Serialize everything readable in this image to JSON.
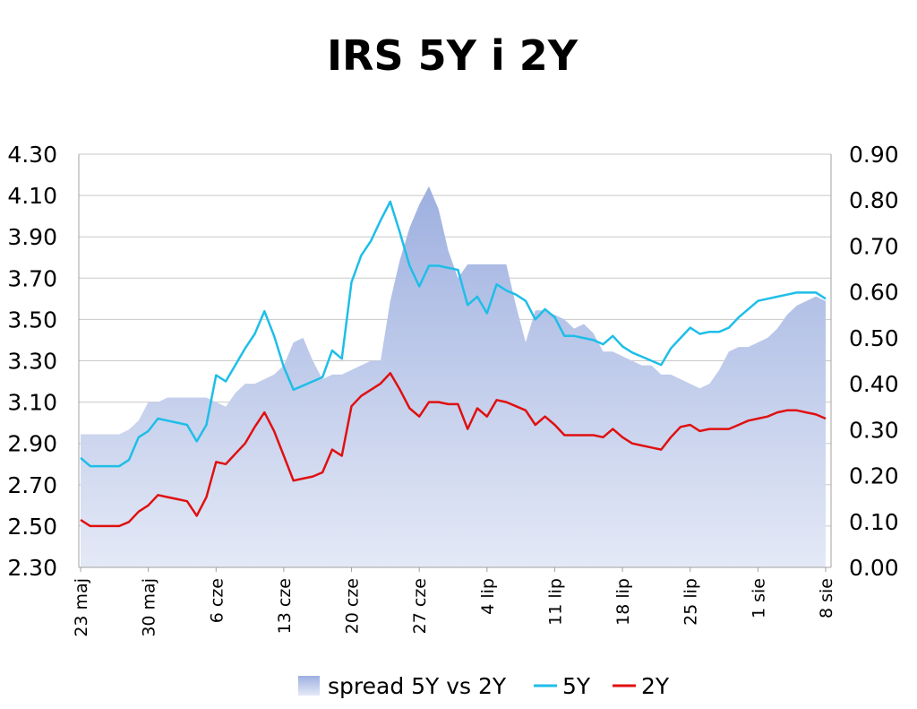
{
  "chart_data": {
    "type": "line",
    "title": "IRS 5Y i 2Y",
    "x_tick_labels": [
      "23 maj",
      "30 maj",
      "6 cze",
      "13 cze",
      "20 cze",
      "27 cze",
      "4 lip",
      "11 lip",
      "18 lip",
      "25 lip",
      "1 sie",
      "8 sie"
    ],
    "y_left": {
      "ylim": [
        2.3,
        4.3
      ],
      "ticks": [
        "2.30",
        "2.50",
        "2.70",
        "2.90",
        "3.10",
        "3.30",
        "3.50",
        "3.70",
        "3.90",
        "4.10",
        "4.30"
      ]
    },
    "y_right": {
      "ylim": [
        0.0,
        0.9
      ],
      "ticks": [
        "0.00",
        "0.10",
        "0.20",
        "0.30",
        "0.40",
        "0.50",
        "0.60",
        "0.70",
        "0.80",
        "0.90"
      ]
    },
    "grid": true,
    "legend_position": "bottom",
    "x_day_range": [
      0,
      77
    ],
    "series": [
      {
        "name": "spread 5Y vs 2Y",
        "kind": "area",
        "axis": "right",
        "color": "#b4c2e6",
        "points": [
          [
            0,
            0.29
          ],
          [
            1,
            0.29
          ],
          [
            2,
            0.29
          ],
          [
            3,
            0.29
          ],
          [
            4,
            0.29
          ],
          [
            5,
            0.3
          ],
          [
            6,
            0.32
          ],
          [
            7,
            0.36
          ],
          [
            8,
            0.36
          ],
          [
            9,
            0.37
          ],
          [
            10,
            0.37
          ],
          [
            11,
            0.37
          ],
          [
            12,
            0.37
          ],
          [
            13,
            0.37
          ],
          [
            14,
            0.36
          ],
          [
            15,
            0.35
          ],
          [
            16,
            0.38
          ],
          [
            17,
            0.4
          ],
          [
            18,
            0.4
          ],
          [
            19,
            0.41
          ],
          [
            20,
            0.42
          ],
          [
            21,
            0.44
          ],
          [
            22,
            0.49
          ],
          [
            23,
            0.5
          ],
          [
            24,
            0.45
          ],
          [
            25,
            0.41
          ],
          [
            26,
            0.42
          ],
          [
            27,
            0.42
          ],
          [
            28,
            0.43
          ],
          [
            29,
            0.44
          ],
          [
            30,
            0.45
          ],
          [
            31,
            0.45
          ],
          [
            32,
            0.58
          ],
          [
            33,
            0.67
          ],
          [
            34,
            0.74
          ],
          [
            35,
            0.79
          ],
          [
            36,
            0.83
          ],
          [
            37,
            0.78
          ],
          [
            38,
            0.69
          ],
          [
            39,
            0.63
          ],
          [
            40,
            0.66
          ],
          [
            41,
            0.66
          ],
          [
            42,
            0.66
          ],
          [
            43,
            0.66
          ],
          [
            44,
            0.66
          ],
          [
            45,
            0.57
          ],
          [
            46,
            0.49
          ],
          [
            47,
            0.56
          ],
          [
            48,
            0.56
          ],
          [
            49,
            0.55
          ],
          [
            50,
            0.54
          ],
          [
            51,
            0.52
          ],
          [
            52,
            0.53
          ],
          [
            53,
            0.51
          ],
          [
            54,
            0.47
          ],
          [
            55,
            0.47
          ],
          [
            56,
            0.46
          ],
          [
            57,
            0.45
          ],
          [
            58,
            0.44
          ],
          [
            59,
            0.44
          ],
          [
            60,
            0.42
          ],
          [
            61,
            0.42
          ],
          [
            62,
            0.41
          ],
          [
            63,
            0.4
          ],
          [
            64,
            0.39
          ],
          [
            65,
            0.4
          ],
          [
            66,
            0.43
          ],
          [
            67,
            0.47
          ],
          [
            68,
            0.48
          ],
          [
            69,
            0.48
          ],
          [
            70,
            0.49
          ],
          [
            71,
            0.5
          ],
          [
            72,
            0.52
          ],
          [
            73,
            0.55
          ],
          [
            74,
            0.57
          ],
          [
            75,
            0.58
          ],
          [
            76,
            0.59
          ],
          [
            77,
            0.58
          ]
        ]
      },
      {
        "name": "5Y",
        "kind": "line",
        "axis": "left",
        "color": "#1ebee8",
        "points": [
          [
            0,
            2.83
          ],
          [
            1,
            2.79
          ],
          [
            2,
            2.79
          ],
          [
            3,
            2.79
          ],
          [
            4,
            2.79
          ],
          [
            5,
            2.82
          ],
          [
            6,
            2.93
          ],
          [
            7,
            2.96
          ],
          [
            8,
            3.02
          ],
          [
            9,
            3.01
          ],
          [
            10,
            3.0
          ],
          [
            11,
            2.99
          ],
          [
            12,
            2.91
          ],
          [
            13,
            2.99
          ],
          [
            14,
            3.23
          ],
          [
            15,
            3.2
          ],
          [
            16,
            3.28
          ],
          [
            17,
            3.36
          ],
          [
            18,
            3.43
          ],
          [
            19,
            3.54
          ],
          [
            20,
            3.42
          ],
          [
            21,
            3.27
          ],
          [
            22,
            3.16
          ],
          [
            23,
            3.18
          ],
          [
            24,
            3.2
          ],
          [
            25,
            3.22
          ],
          [
            26,
            3.35
          ],
          [
            27,
            3.31
          ],
          [
            28,
            3.68
          ],
          [
            29,
            3.81
          ],
          [
            30,
            3.88
          ],
          [
            31,
            3.98
          ],
          [
            32,
            4.07
          ],
          [
            33,
            3.92
          ],
          [
            34,
            3.76
          ],
          [
            35,
            3.66
          ],
          [
            36,
            3.76
          ],
          [
            37,
            3.76
          ],
          [
            38,
            3.75
          ],
          [
            39,
            3.74
          ],
          [
            40,
            3.57
          ],
          [
            41,
            3.61
          ],
          [
            42,
            3.53
          ],
          [
            43,
            3.67
          ],
          [
            44,
            3.64
          ],
          [
            45,
            3.62
          ],
          [
            46,
            3.59
          ],
          [
            47,
            3.5
          ],
          [
            48,
            3.55
          ],
          [
            49,
            3.51
          ],
          [
            50,
            3.42
          ],
          [
            51,
            3.42
          ],
          [
            52,
            3.41
          ],
          [
            53,
            3.4
          ],
          [
            54,
            3.38
          ],
          [
            55,
            3.42
          ],
          [
            56,
            3.37
          ],
          [
            57,
            3.34
          ],
          [
            58,
            3.32
          ],
          [
            59,
            3.3
          ],
          [
            60,
            3.28
          ],
          [
            61,
            3.36
          ],
          [
            62,
            3.41
          ],
          [
            63,
            3.46
          ],
          [
            64,
            3.43
          ],
          [
            65,
            3.44
          ],
          [
            66,
            3.44
          ],
          [
            67,
            3.46
          ],
          [
            68,
            3.51
          ],
          [
            69,
            3.55
          ],
          [
            70,
            3.59
          ],
          [
            71,
            3.6
          ],
          [
            72,
            3.61
          ],
          [
            73,
            3.62
          ],
          [
            74,
            3.63
          ],
          [
            75,
            3.63
          ],
          [
            76,
            3.63
          ],
          [
            77,
            3.6
          ]
        ]
      },
      {
        "name": "2Y",
        "kind": "line",
        "axis": "left",
        "color": "#e01010",
        "points": [
          [
            0,
            2.53
          ],
          [
            1,
            2.5
          ],
          [
            2,
            2.5
          ],
          [
            3,
            2.5
          ],
          [
            4,
            2.5
          ],
          [
            5,
            2.52
          ],
          [
            6,
            2.57
          ],
          [
            7,
            2.6
          ],
          [
            8,
            2.65
          ],
          [
            9,
            2.64
          ],
          [
            10,
            2.63
          ],
          [
            11,
            2.62
          ],
          [
            12,
            2.55
          ],
          [
            13,
            2.64
          ],
          [
            14,
            2.81
          ],
          [
            15,
            2.8
          ],
          [
            16,
            2.85
          ],
          [
            17,
            2.9
          ],
          [
            18,
            2.98
          ],
          [
            19,
            3.05
          ],
          [
            20,
            2.96
          ],
          [
            21,
            2.84
          ],
          [
            22,
            2.72
          ],
          [
            23,
            2.73
          ],
          [
            24,
            2.74
          ],
          [
            25,
            2.76
          ],
          [
            26,
            2.87
          ],
          [
            27,
            2.84
          ],
          [
            28,
            3.08
          ],
          [
            29,
            3.13
          ],
          [
            30,
            3.16
          ],
          [
            31,
            3.19
          ],
          [
            32,
            3.24
          ],
          [
            33,
            3.16
          ],
          [
            34,
            3.07
          ],
          [
            35,
            3.03
          ],
          [
            36,
            3.1
          ],
          [
            37,
            3.1
          ],
          [
            38,
            3.09
          ],
          [
            39,
            3.09
          ],
          [
            40,
            2.97
          ],
          [
            41,
            3.07
          ],
          [
            42,
            3.03
          ],
          [
            43,
            3.11
          ],
          [
            44,
            3.1
          ],
          [
            45,
            3.08
          ],
          [
            46,
            3.06
          ],
          [
            47,
            2.99
          ],
          [
            48,
            3.03
          ],
          [
            49,
            2.99
          ],
          [
            50,
            2.94
          ],
          [
            51,
            2.94
          ],
          [
            52,
            2.94
          ],
          [
            53,
            2.94
          ],
          [
            54,
            2.93
          ],
          [
            55,
            2.97
          ],
          [
            56,
            2.93
          ],
          [
            57,
            2.9
          ],
          [
            58,
            2.89
          ],
          [
            59,
            2.88
          ],
          [
            60,
            2.87
          ],
          [
            61,
            2.93
          ],
          [
            62,
            2.98
          ],
          [
            63,
            2.99
          ],
          [
            64,
            2.96
          ],
          [
            65,
            2.97
          ],
          [
            66,
            2.97
          ],
          [
            67,
            2.97
          ],
          [
            68,
            2.99
          ],
          [
            69,
            3.01
          ],
          [
            70,
            3.02
          ],
          [
            71,
            3.03
          ],
          [
            72,
            3.05
          ],
          [
            73,
            3.06
          ],
          [
            74,
            3.06
          ],
          [
            75,
            3.05
          ],
          [
            76,
            3.04
          ],
          [
            77,
            3.02
          ]
        ]
      }
    ]
  }
}
